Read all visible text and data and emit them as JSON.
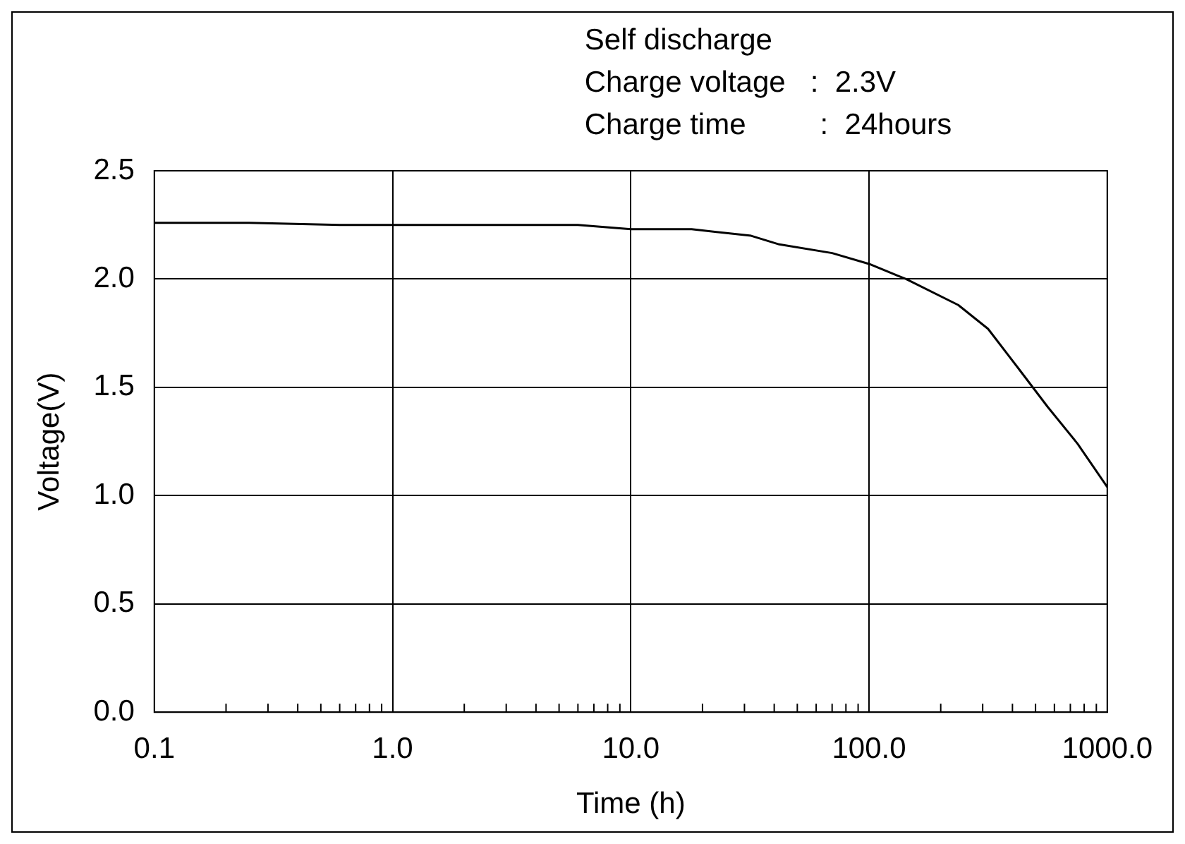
{
  "chart_data": {
    "type": "line",
    "xlabel": "Time (h)",
    "ylabel": "Voltage(V)",
    "annotations": [
      "Self discharge",
      "Charge voltage   :  2.3V",
      "Charge time         :  24hours"
    ],
    "series": [
      {
        "color": "#000000",
        "x": [
          0.1,
          0.25,
          0.6,
          1,
          3,
          6,
          10,
          18,
          32,
          42,
          70,
          100,
          143,
          237,
          316,
          422,
          562,
          750,
          1000
        ],
        "values": [
          2.26,
          2.26,
          2.25,
          2.25,
          2.25,
          2.25,
          2.23,
          2.23,
          2.2,
          2.16,
          2.12,
          2.07,
          2.0,
          1.88,
          1.77,
          1.59,
          1.41,
          1.24,
          1.04
        ]
      }
    ],
    "log": "x",
    "xlim": [
      0.1,
      1000
    ],
    "xticks": [
      0.1,
      {
        "value": 0.2,
        "label": null
      },
      {
        "value": 0.3,
        "label": null
      },
      {
        "value": 0.4,
        "label": null
      },
      {
        "value": 0.5,
        "label": null
      },
      {
        "value": 0.6,
        "label": null
      },
      {
        "value": 0.7,
        "label": null
      },
      {
        "value": 0.8,
        "label": null
      },
      {
        "value": 0.9,
        "label": null
      },
      {
        "value": 1,
        "label": "1.0"
      },
      {
        "value": 2,
        "label": null
      },
      {
        "value": 3,
        "label": null
      },
      {
        "value": 4,
        "label": null
      },
      {
        "value": 5,
        "label": null
      },
      {
        "value": 6,
        "label": null
      },
      {
        "value": 7,
        "label": null
      },
      {
        "value": 8,
        "label": null
      },
      {
        "value": 9,
        "label": null
      },
      {
        "value": 10,
        "label": "10.0"
      },
      {
        "value": 20,
        "label": null
      },
      {
        "value": 30,
        "label": null
      },
      {
        "value": 40,
        "label": null
      },
      {
        "value": 50,
        "label": null
      },
      {
        "value": 60,
        "label": null
      },
      {
        "value": 70,
        "label": null
      },
      {
        "value": 80,
        "label": null
      },
      {
        "value": 90,
        "label": null
      },
      {
        "value": 100,
        "label": "100.0"
      },
      {
        "value": 200,
        "label": null
      },
      {
        "value": 300,
        "label": null
      },
      {
        "value": 400,
        "label": null
      },
      {
        "value": 500,
        "label": null
      },
      {
        "value": 600,
        "label": null
      },
      {
        "value": 700,
        "label": null
      },
      {
        "value": 800,
        "label": null
      },
      {
        "value": 900,
        "label": null
      },
      {
        "value": 1000,
        "label": "1000.0"
      }
    ],
    "ylim": [
      0,
      2.5
    ],
    "yticks": [
      {
        "value": 0,
        "label": "0.0"
      },
      0.5,
      {
        "value": 1,
        "label": "1.0"
      },
      1.5,
      {
        "value": 2,
        "label": "2.0"
      },
      2.5
    ],
    "grid": true,
    "legend": false,
    "marker": "none",
    "line_style": "solid"
  }
}
